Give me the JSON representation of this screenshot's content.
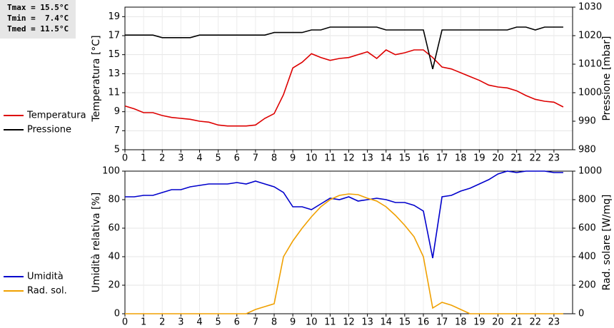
{
  "stats": [
    "Tmax = 15.5°C",
    "Tmin =  7.4°C",
    "Tmed = 11.5°C"
  ],
  "chart_data": [
    {
      "type": "line",
      "ylabel": "Temperatura [°C]",
      "y2label": "Pressione [mbar]",
      "grid": true,
      "x": [
        0,
        0.5,
        1,
        1.5,
        2,
        2.5,
        3,
        3.5,
        4,
        4.5,
        5,
        5.5,
        6,
        6.5,
        7,
        7.5,
        8,
        8.5,
        9,
        9.5,
        10,
        10.5,
        11,
        11.5,
        12,
        12.5,
        13,
        13.5,
        14,
        14.5,
        15,
        15.5,
        16,
        16.5,
        17,
        17.5,
        18,
        18.5,
        19,
        19.5,
        20,
        20.5,
        21,
        21.5,
        22,
        22.5,
        23,
        23.5
      ],
      "xlim": [
        0,
        24
      ],
      "xticks": [
        0,
        1,
        2,
        3,
        4,
        5,
        6,
        7,
        8,
        9,
        10,
        11,
        12,
        13,
        14,
        15,
        16,
        17,
        18,
        19,
        20,
        21,
        22,
        23
      ],
      "ylim": [
        5,
        20
      ],
      "yticks": [
        5,
        7,
        9,
        11,
        13,
        15,
        17,
        19
      ],
      "y2lim": [
        980,
        1030
      ],
      "y2ticks": [
        980,
        990,
        1000,
        1010,
        1020,
        1030
      ],
      "series": [
        {
          "name": "Temperatura",
          "color": "#dd0000",
          "values": [
            9.6,
            9.3,
            8.9,
            8.9,
            8.6,
            8.4,
            8.3,
            8.2,
            8.0,
            7.9,
            7.6,
            7.5,
            7.5,
            7.5,
            7.6,
            8.3,
            8.8,
            10.8,
            13.6,
            14.2,
            15.1,
            14.7,
            14.4,
            14.6,
            14.7,
            15.0,
            15.3,
            14.6,
            15.5,
            15.0,
            15.2,
            15.5,
            15.5,
            14.7,
            13.7,
            13.5,
            13.1,
            12.7,
            12.3,
            11.8,
            11.6,
            11.5,
            11.2,
            10.7,
            10.3,
            10.1,
            10.0,
            9.5
          ]
        },
        {
          "name": "Pressione",
          "color": "#000000",
          "axis": "y2",
          "values": [
            1020.2,
            1020.2,
            1020.2,
            1020.2,
            1019.3,
            1019.3,
            1019.3,
            1019.3,
            1020.2,
            1020.2,
            1020.2,
            1020.2,
            1020.2,
            1020.2,
            1020.2,
            1020.2,
            1021.1,
            1021.1,
            1021.1,
            1021.1,
            1022,
            1022,
            1023,
            1023,
            1023,
            1023,
            1023,
            1023,
            1022,
            1022,
            1022,
            1022,
            1022,
            1008.3,
            1022,
            1022,
            1022,
            1022,
            1022,
            1022,
            1022,
            1022,
            1023,
            1023,
            1022,
            1023,
            1023,
            1023
          ]
        }
      ]
    },
    {
      "type": "line",
      "ylabel": "Umidità relativa [%]",
      "y2label": "Rad. solare [W/mq]",
      "grid": true,
      "x": [
        0,
        0.5,
        1,
        1.5,
        2,
        2.5,
        3,
        3.5,
        4,
        4.5,
        5,
        5.5,
        6,
        6.5,
        7,
        7.5,
        8,
        8.5,
        9,
        9.5,
        10,
        10.5,
        11,
        11.5,
        12,
        12.5,
        13,
        13.5,
        14,
        14.5,
        15,
        15.5,
        16,
        16.5,
        17,
        17.5,
        18,
        18.5,
        19,
        19.5,
        20,
        20.5,
        21,
        21.5,
        22,
        22.5,
        23,
        23.5
      ],
      "xlim": [
        0,
        24
      ],
      "xticks": [
        0,
        1,
        2,
        3,
        4,
        5,
        6,
        7,
        8,
        9,
        10,
        11,
        12,
        13,
        14,
        15,
        16,
        17,
        18,
        19,
        20,
        21,
        22,
        23
      ],
      "ylim": [
        0,
        100
      ],
      "yticks": [
        0,
        20,
        40,
        60,
        80,
        100
      ],
      "y2lim": [
        0,
        1000
      ],
      "y2ticks": [
        0,
        200,
        400,
        600,
        800,
        1000
      ],
      "series": [
        {
          "name": "Umidità",
          "color": "#0000cc",
          "values": [
            82,
            82,
            83,
            83,
            85,
            87,
            87,
            89,
            90,
            91,
            91,
            91,
            92,
            91,
            93,
            91,
            89,
            85,
            75,
            75,
            73,
            77,
            81,
            80,
            82,
            79,
            80,
            81,
            80,
            78,
            78,
            76,
            72,
            39,
            82,
            83,
            86,
            88,
            91,
            94,
            98,
            100,
            99,
            100,
            100,
            100,
            99,
            99
          ]
        },
        {
          "name": "Rad. sol.",
          "color": "#f0a000",
          "axis": "y2",
          "values": [
            0,
            0,
            0,
            0,
            0,
            0,
            0,
            0,
            0,
            0,
            0,
            0,
            0,
            0,
            30,
            50,
            70,
            400,
            510,
            600,
            680,
            750,
            800,
            830,
            840,
            835,
            810,
            790,
            750,
            690,
            620,
            540,
            400,
            40,
            80,
            60,
            30,
            0,
            0,
            0,
            0,
            0,
            0,
            0,
            0,
            0,
            0,
            0
          ]
        }
      ]
    }
  ]
}
